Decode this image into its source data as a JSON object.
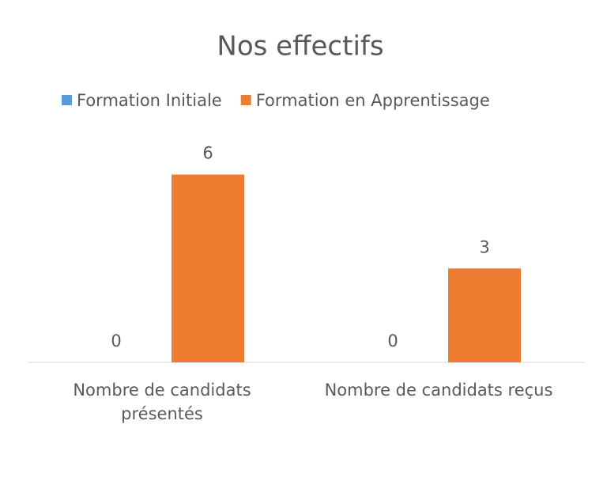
{
  "chart_data": {
    "type": "bar",
    "title": "Nos effectifs",
    "categories": [
      "Nombre de candidats présentés",
      "Nombre de candidats reçus"
    ],
    "series": [
      {
        "name": "Formation Initiale",
        "color": "#5b9bd5",
        "values": [
          0,
          0
        ]
      },
      {
        "name": "Formation en Apprentissage",
        "color": "#ed7d31",
        "values": [
          6,
          3
        ]
      }
    ],
    "ylim": [
      0,
      7
    ]
  }
}
